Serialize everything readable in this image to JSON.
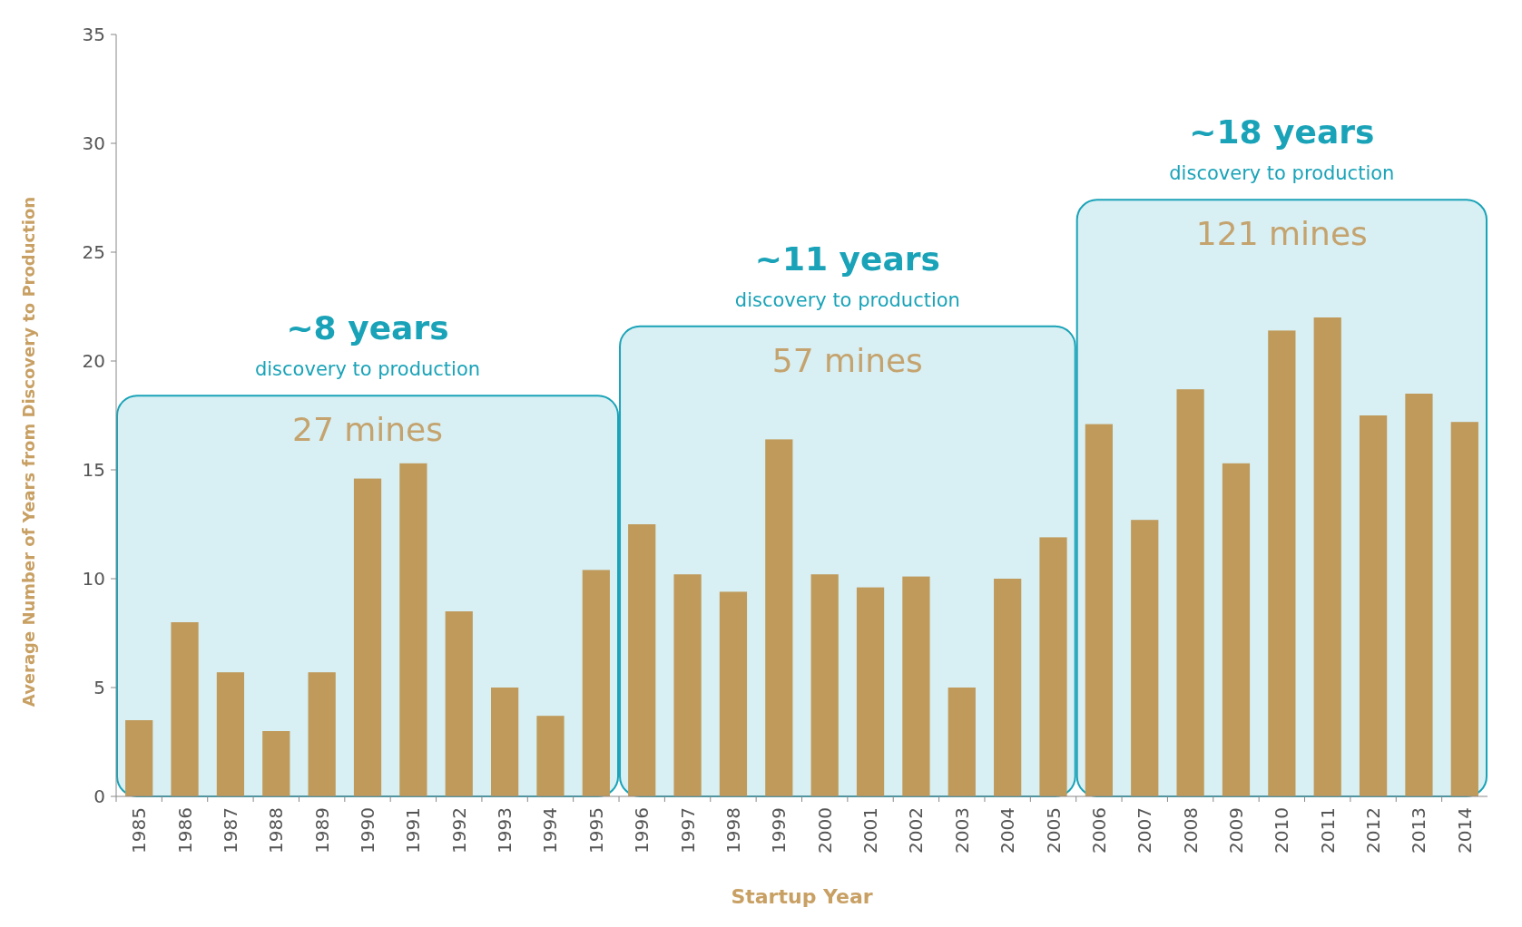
{
  "chart_data": {
    "type": "bar",
    "xlabel": "Startup Year",
    "ylabel": "Average Number of Years from Discovery to Production",
    "categories": [
      "1985",
      "1986",
      "1987",
      "1988",
      "1989",
      "1990",
      "1991",
      "1992",
      "1993",
      "1994",
      "1995",
      "1996",
      "1997",
      "1998",
      "1999",
      "2000",
      "2001",
      "2002",
      "2003",
      "2004",
      "2005",
      "2006",
      "2007",
      "2008",
      "2009",
      "2010",
      "2011",
      "2012",
      "2013",
      "2014"
    ],
    "values": [
      3.5,
      8.0,
      5.7,
      3.0,
      5.7,
      14.6,
      15.3,
      8.5,
      5.0,
      3.7,
      10.4,
      12.5,
      10.2,
      9.4,
      16.4,
      10.2,
      9.6,
      10.1,
      5.0,
      10.0,
      11.9,
      17.1,
      12.7,
      18.7,
      15.3,
      21.4,
      22.0,
      17.5,
      18.5,
      17.2
    ],
    "color": "#bf9a5a",
    "ylim": [
      0,
      35
    ],
    "yticks": [
      0,
      5,
      10,
      15,
      20,
      25,
      30,
      35
    ],
    "bands": [
      {
        "axis": "x",
        "from": "1985",
        "to": "1995",
        "color": "#1aa3b8"
      },
      {
        "axis": "x",
        "from": "1996",
        "to": "2005",
        "color": "#1aa3b8"
      },
      {
        "axis": "x",
        "from": "2006",
        "to": "2014",
        "color": "#1aa3b8"
      }
    ],
    "annotations": [
      "~8 years",
      "discovery to production",
      "27 mines",
      "~11 years",
      "discovery to production",
      "57 mines",
      "~18 years",
      "discovery to production",
      "121 mines"
    ]
  }
}
